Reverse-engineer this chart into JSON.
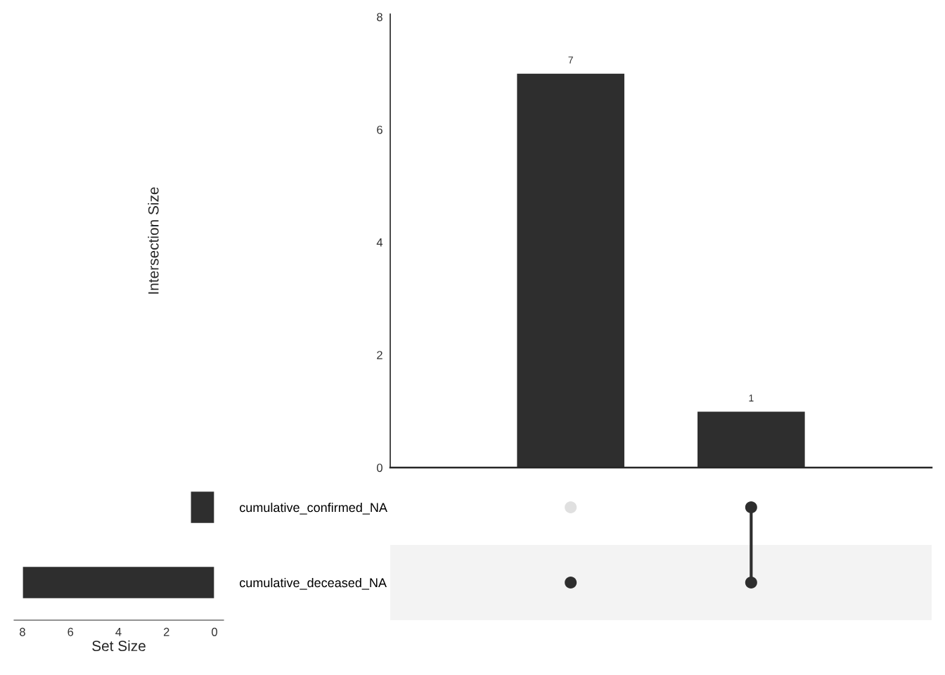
{
  "chart_data": [
    {
      "type": "bar",
      "categories": [
        null,
        null
      ],
      "values": [
        7,
        1
      ],
      "color": "#2e2e2e",
      "ylabel": "Intersection Size",
      "ylim": [
        0,
        8.05
      ],
      "yticks": [
        0,
        2,
        4,
        6,
        8
      ],
      "data_labels": true
    },
    {
      "type": "bar",
      "orientation": "horizontal",
      "categories": [
        "cumulative_confirmed_NA",
        "cumulative_deceased_NA"
      ],
      "values": [
        1,
        8
      ],
      "color": "#2e2e2e",
      "xlabel": "Set Size",
      "xlim": [
        8.35,
        -0.38
      ],
      "xticks": [
        8,
        6,
        4,
        2,
        0
      ]
    }
  ]
}
